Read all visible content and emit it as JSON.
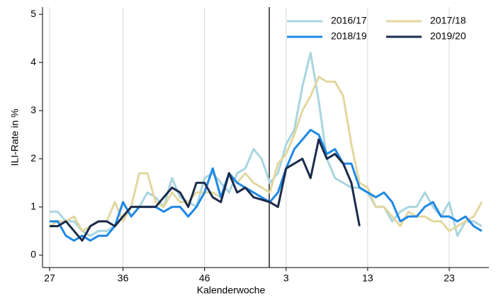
{
  "chart_data": {
    "type": "line",
    "x_label": "Kalenderwoche",
    "y_label": "ILI-Rate in %",
    "categories": [
      "27",
      null,
      null,
      null,
      null,
      null,
      null,
      null,
      null,
      "36",
      null,
      null,
      null,
      null,
      null,
      null,
      null,
      null,
      null,
      "46",
      null,
      null,
      null,
      null,
      null,
      null,
      null,
      null,
      null,
      "3",
      null,
      null,
      null,
      null,
      null,
      null,
      null,
      null,
      null,
      "13",
      null,
      null,
      null,
      null,
      null,
      null,
      null,
      null,
      null,
      "23",
      null,
      null,
      null,
      null
    ],
    "series": [
      {
        "name": "2016/17",
        "color": "#a9d5e0",
        "values": [
          0.9,
          0.9,
          0.7,
          0.7,
          0.5,
          0.4,
          0.5,
          0.5,
          0.6,
          0.8,
          1.0,
          1.0,
          1.3,
          1.2,
          1.0,
          1.6,
          1.2,
          1.1,
          1.0,
          1.6,
          1.7,
          1.5,
          1.3,
          1.7,
          1.8,
          2.2,
          2.0,
          1.5,
          1.7,
          2.3,
          2.6,
          3.5,
          4.2,
          3.2,
          2.0,
          1.6,
          1.5,
          1.4,
          1.4,
          1.3,
          1.0,
          1.0,
          0.7,
          0.9,
          1.0,
          1.0,
          1.3,
          1.0,
          0.8,
          1.1,
          0.4,
          0.7,
          0.7,
          0.6
        ]
      },
      {
        "name": "2017/18",
        "color": "#e2d79f",
        "values": [
          0.6,
          0.7,
          0.7,
          0.8,
          0.5,
          0.6,
          0.7,
          0.7,
          1.1,
          0.7,
          1.0,
          1.7,
          1.7,
          1.1,
          1.0,
          1.3,
          1.1,
          1.1,
          1.3,
          1.3,
          1.3,
          1.2,
          1.7,
          1.5,
          1.7,
          1.5,
          1.4,
          1.3,
          1.9,
          2.1,
          2.5,
          3.0,
          3.3,
          3.7,
          3.6,
          3.6,
          3.3,
          2.3,
          1.5,
          1.4,
          1.0,
          1.0,
          0.8,
          0.6,
          0.9,
          0.8,
          0.8,
          0.7,
          0.7,
          0.5,
          0.6,
          0.7,
          0.8,
          1.1
        ]
      },
      {
        "name": "2018/19",
        "color": "#1e88e5",
        "values": [
          0.7,
          0.7,
          0.4,
          0.3,
          0.4,
          0.3,
          0.4,
          0.4,
          0.6,
          1.1,
          0.8,
          1.0,
          1.0,
          1.0,
          0.9,
          1.0,
          1.0,
          0.8,
          1.0,
          1.3,
          1.8,
          1.2,
          1.7,
          1.5,
          1.4,
          1.3,
          1.2,
          1.1,
          1.3,
          1.8,
          2.2,
          2.4,
          2.6,
          2.5,
          2.1,
          2.2,
          1.9,
          1.9,
          1.4,
          1.3,
          1.2,
          1.3,
          1.1,
          0.7,
          0.8,
          0.8,
          1.0,
          1.1,
          0.8,
          0.8,
          0.7,
          0.8,
          0.6,
          0.5
        ]
      },
      {
        "name": "2019/20",
        "color": "#1b2b4b",
        "values": [
          0.6,
          0.6,
          0.7,
          0.5,
          0.3,
          0.6,
          0.7,
          0.7,
          0.6,
          0.8,
          1.0,
          1.0,
          1.0,
          1.0,
          1.2,
          1.4,
          1.3,
          1.0,
          1.5,
          1.5,
          1.2,
          1.1,
          1.7,
          1.3,
          1.4,
          1.2,
          1.15,
          1.1,
          1.0,
          1.8,
          1.9,
          2.0,
          1.6,
          2.4,
          2.0,
          2.1,
          1.9,
          1.5,
          0.6,
          null,
          null,
          null,
          null,
          null,
          null,
          null,
          null,
          null,
          null,
          null,
          null,
          null,
          null,
          null
        ]
      }
    ],
    "ylim": [
      -0.26,
      5.15
    ],
    "yticks": [
      0,
      1,
      2,
      3,
      4,
      5
    ],
    "grid": true,
    "legend": "top-right"
  }
}
